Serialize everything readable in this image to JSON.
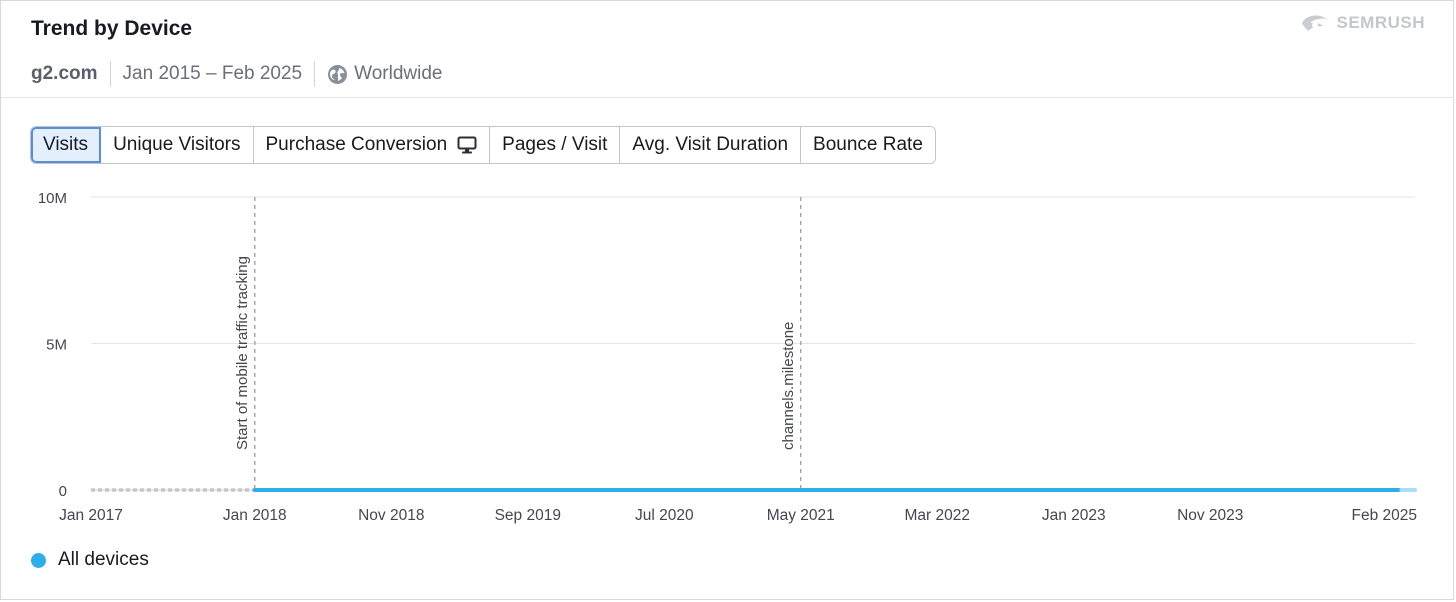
{
  "header": {
    "title": "Trend by Device",
    "brand": "SEMRUSH",
    "domain": "g2.com",
    "date_range": "Jan 2015 – Feb 2025",
    "region": "Worldwide"
  },
  "tabs": [
    {
      "label": "Visits",
      "active": true
    },
    {
      "label": "Unique Visitors",
      "active": false
    },
    {
      "label": "Purchase Conversion",
      "active": false,
      "icon": "desktop-icon"
    },
    {
      "label": "Pages / Visit",
      "active": false
    },
    {
      "label": "Avg. Visit Duration",
      "active": false
    },
    {
      "label": "Bounce Rate",
      "active": false
    }
  ],
  "legend": {
    "label": "All devices",
    "color": "#2eaee9"
  },
  "chart_data": {
    "type": "line",
    "title": "",
    "xlabel": "",
    "ylabel": "",
    "ylim": [
      0,
      10
    ],
    "grid": true,
    "color": "#2eaee9",
    "y_ticks": [
      {
        "value": 0,
        "label": "0"
      },
      {
        "value": 5,
        "label": "5M"
      },
      {
        "value": 10,
        "label": "10M"
      }
    ],
    "x_ticks": [
      "Jan 2017",
      "Jan 2018",
      "Nov 2018",
      "Sep 2019",
      "Jul 2020",
      "May 2021",
      "Mar 2022",
      "Jan 2023",
      "Nov 2023",
      "Feb 2025"
    ],
    "annotations": [
      {
        "x": "Jan 2018",
        "label": "Start of mobile traffic tracking"
      },
      {
        "x": "May 2021",
        "label": "channels.milestone"
      }
    ],
    "series": [
      {
        "name": "All devices",
        "dashed_until": "Jan 2018",
        "faded_from": "Jan 2025",
        "x": [
          "Jan 2017",
          "Feb 2017",
          "Mar 2017",
          "Apr 2017",
          "May 2017",
          "Jun 2017",
          "Jul 2017",
          "Aug 2017",
          "Sep 2017",
          "Oct 2017",
          "Nov 2017",
          "Dec 2017",
          "Jan 2018",
          "Feb 2018",
          "Mar 2018",
          "Apr 2018",
          "May 2018",
          "Jun 2018",
          "Jul 2018",
          "Aug 2018",
          "Sep 2018",
          "Oct 2018",
          "Nov 2018",
          "Dec 2018",
          "Jan 2019",
          "Feb 2019",
          "Mar 2019",
          "Apr 2019",
          "May 2019",
          "Jun 2019",
          "Jul 2019",
          "Aug 2019",
          "Sep 2019",
          "Oct 2019",
          "Nov 2019",
          "Dec 2019",
          "Jan 2020",
          "Feb 2020",
          "Mar 2020",
          "Apr 2020",
          "May 2020",
          "Jun 2020",
          "Jul 2020",
          "Aug 2020",
          "Sep 2020",
          "Oct 2020",
          "Nov 2020",
          "Dec 2020",
          "Jan 2021",
          "Feb 2021",
          "Mar 2021",
          "Apr 2021",
          "May 2021",
          "Jun 2021",
          "Jul 2021",
          "Aug 2021",
          "Sep 2021",
          "Oct 2021",
          "Nov 2021",
          "Dec 2021",
          "Jan 2022",
          "Feb 2022",
          "Mar 2022",
          "Apr 2022",
          "May 2022",
          "Jun 2022",
          "Jul 2022",
          "Aug 2022",
          "Sep 2022",
          "Oct 2022",
          "Nov 2022",
          "Dec 2022",
          "Jan 2023",
          "Feb 2023",
          "Mar 2023",
          "Apr 2023",
          "May 2023",
          "Jun 2023",
          "Jul 2023",
          "Aug 2023",
          "Sep 2023",
          "Oct 2023",
          "Nov 2023",
          "Dec 2023",
          "Jan 2024",
          "Feb 2024",
          "Mar 2024",
          "Apr 2024",
          "May 2024",
          "Jun 2024",
          "Jul 2024",
          "Aug 2024",
          "Sep 2024",
          "Oct 2024",
          "Nov 2024",
          "Dec 2024",
          "Jan 2025",
          "Feb 2025"
        ],
        "values": [
          0,
          0,
          0,
          0,
          0,
          0,
          0,
          0,
          0,
          0,
          0,
          0,
          0,
          0,
          0,
          0,
          0,
          0,
          0,
          0,
          0,
          0,
          0,
          0,
          0,
          0,
          0,
          0,
          0,
          0,
          0,
          0,
          0,
          0,
          0,
          0,
          0,
          0,
          0,
          0,
          0,
          0,
          0,
          0,
          0,
          0,
          0,
          0,
          0,
          0,
          0,
          0,
          0,
          0,
          0,
          0,
          0,
          0,
          0,
          0,
          0,
          0,
          0,
          0,
          0,
          0,
          0,
          0,
          0,
          0,
          0,
          0,
          0,
          0,
          0,
          0,
          0,
          0,
          0,
          0,
          0,
          0,
          0,
          0,
          0,
          0,
          0,
          0,
          0,
          0,
          0,
          0,
          0,
          0,
          0,
          0,
          0,
          0
        ]
      }
    ]
  }
}
